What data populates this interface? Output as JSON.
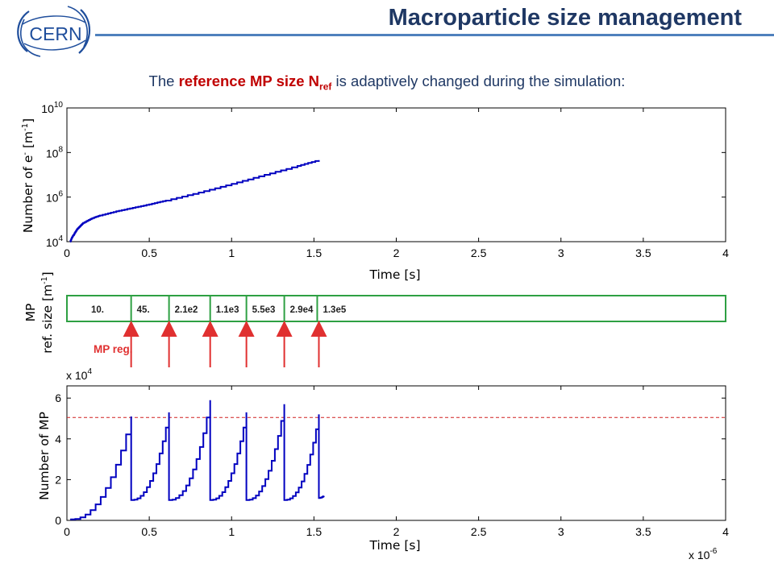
{
  "slide": {
    "title": "Macroparticle size management",
    "subtitle_parts": [
      "The ",
      "reference MP size N",
      "ref",
      " is adaptively changed during the simulation:"
    ]
  },
  "logo": {
    "text": "CERN"
  },
  "colors": {
    "title": "#1f3864",
    "rule": "#4f81bd",
    "highlight": "#c00000",
    "series": "#0000c0",
    "threshold": "#d02020",
    "box": "#2ea043",
    "arrow": "#e03030"
  },
  "chart_data": [
    {
      "type": "line",
      "xlabel": "Time [s]",
      "ylabel_parts": [
        "Number of e",
        "-",
        " [m",
        "-1",
        "]"
      ],
      "yscale": "log",
      "xlim": [
        0,
        4
      ],
      "ylim_exponent": [
        4,
        10
      ],
      "xticks": [
        "0",
        "0.5",
        "1",
        "1.5",
        "2",
        "2.5",
        "3",
        "3.5",
        "4"
      ],
      "yticks": [
        {
          "base": "10",
          "exp": "4"
        },
        {
          "base": "10",
          "exp": "6"
        },
        {
          "base": "10",
          "exp": "8"
        },
        {
          "base": "10",
          "exp": "10"
        }
      ],
      "series": [
        {
          "x": [
            0.02,
            0.03,
            0.04,
            0.06,
            0.08,
            0.1,
            0.15,
            0.2,
            0.3,
            0.4,
            0.5,
            0.6,
            0.8,
            1.0,
            1.2,
            1.4,
            1.53
          ],
          "y": [
            10000,
            15000,
            20000,
            35000,
            50000,
            70000,
            110000,
            150000,
            230000,
            330000,
            470000,
            700000,
            1600000,
            3900000,
            10000000,
            25000000,
            46000000
          ]
        }
      ]
    },
    {
      "type": "table",
      "ylabel_parts": [
        "MP",
        "ref. size [m",
        "-1",
        "]"
      ],
      "xlim": [
        0,
        4
      ],
      "segments": [
        {
          "label": "10.",
          "x_start": 0.0,
          "x_end": 0.39
        },
        {
          "label": "45.",
          "x_start": 0.39,
          "x_end": 0.62
        },
        {
          "label": "2.1e2",
          "x_start": 0.62,
          "x_end": 0.87
        },
        {
          "label": "1.1e3",
          "x_start": 0.87,
          "x_end": 1.09
        },
        {
          "label": "5.5e3",
          "x_start": 1.09,
          "x_end": 1.32
        },
        {
          "label": "2.9e4",
          "x_start": 1.32,
          "x_end": 1.52
        },
        {
          "label": "1.3e5",
          "x_start": 1.52,
          "x_end": 4.0
        }
      ],
      "annotation": "MP reg.",
      "regeneration_times": [
        0.39,
        0.62,
        0.87,
        1.09,
        1.32,
        1.53
      ]
    },
    {
      "type": "line",
      "xlabel": "Time [s]",
      "ylabel": "Number of MP",
      "xlim": [
        0,
        4
      ],
      "ylim": [
        0,
        6.6
      ],
      "x_multiplier": {
        "base": "x 10",
        "exp": "-6"
      },
      "y_multiplier": {
        "base": "x 10",
        "exp": "4"
      },
      "xticks": [
        "0",
        "0.5",
        "1",
        "1.5",
        "2",
        "2.5",
        "3",
        "3.5",
        "4"
      ],
      "yticks": [
        "0",
        "2",
        "4",
        "6"
      ],
      "threshold": 5.05,
      "cycles": [
        {
          "start": 0.02,
          "end": 0.39,
          "y0": 0.05,
          "peak": 5.1,
          "reset": 1.0
        },
        {
          "start": 0.39,
          "end": 0.62,
          "y0": 1.0,
          "peak": 5.3,
          "reset": 1.0
        },
        {
          "start": 0.62,
          "end": 0.87,
          "y0": 1.0,
          "peak": 5.9,
          "reset": 1.0
        },
        {
          "start": 0.87,
          "end": 1.09,
          "y0": 1.0,
          "peak": 5.3,
          "reset": 1.0
        },
        {
          "start": 1.09,
          "end": 1.32,
          "y0": 1.0,
          "peak": 5.7,
          "reset": 1.0
        },
        {
          "start": 1.32,
          "end": 1.53,
          "y0": 1.0,
          "peak": 5.2,
          "reset": 1.1
        },
        {
          "start": 1.53,
          "end": 1.56,
          "y0": 1.1,
          "peak": 1.2,
          "reset": 1.2
        }
      ]
    }
  ]
}
